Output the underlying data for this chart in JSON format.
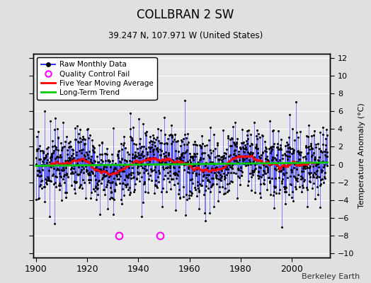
{
  "title": "COLLBRAN 2 SW",
  "subtitle": "39.247 N, 107.971 W (United States)",
  "ylabel": "Temperature Anomaly (°C)",
  "credit": "Berkeley Earth",
  "year_start": 1900,
  "year_end": 2014,
  "ylim": [
    -10.5,
    12.5
  ],
  "yticks": [
    -10,
    -8,
    -6,
    -4,
    -2,
    0,
    2,
    4,
    6,
    8,
    10,
    12
  ],
  "xticks": [
    1900,
    1920,
    1940,
    1960,
    1980,
    2000
  ],
  "qc_fail_years": [
    1932.5,
    1948.5
  ],
  "qc_fail_values": [
    -8.0,
    -8.0
  ],
  "raw_color": "#3333ff",
  "qc_color": "#ff00ff",
  "moving_avg_color": "#ff0000",
  "trend_color": "#00cc00",
  "bg_color": "#e0e0e0",
  "plot_bg_color": "#e8e8e8",
  "grid_color": "#ffffff",
  "seed": 17
}
